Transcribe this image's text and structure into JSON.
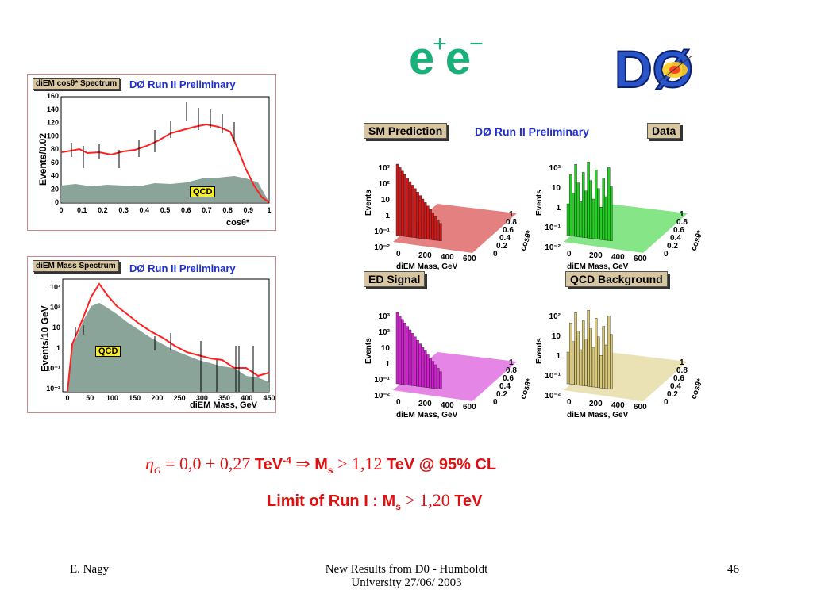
{
  "slide": {
    "title_base": "e",
    "title_plus": "+",
    "title_base2": "e",
    "title_minus": "−"
  },
  "logo": {
    "text": "DØ"
  },
  "plot_cos": {
    "tag": "diEM cosθ* Spectrum",
    "prelim": "DØ Run II Preliminary",
    "ylabel": "Events/0.02",
    "xlabel": "cosθ*",
    "yticks": [
      "0",
      "20",
      "40",
      "60",
      "80",
      "100",
      "120",
      "140",
      "160"
    ],
    "xticks": [
      "0",
      "0.1",
      "0.2",
      "0.3",
      "0.4",
      "0.5",
      "0.6",
      "0.7",
      "0.8",
      "0.9",
      "1"
    ],
    "qcd": "QCD"
  },
  "plot_mass": {
    "tag": "diEM Mass Spectrum",
    "prelim": "DØ Run II Preliminary",
    "ylabel": "Events/10 GeV",
    "xlabel": "diEM Mass, GeV",
    "yticks": [
      "10⁻²",
      "10⁻¹",
      "1",
      "10",
      "10²",
      "10³"
    ],
    "xticks": [
      "0",
      "50",
      "100",
      "150",
      "200",
      "250",
      "300",
      "350",
      "400",
      "450"
    ],
    "qcd": "QCD"
  },
  "lego": {
    "prelim": "DØ Run II Preliminary",
    "panels": [
      {
        "tag": "SM Prediction",
        "color": "#d01818",
        "ylabel": "Events",
        "zt": [
          "10³",
          "10²",
          "10",
          "1",
          "10⁻¹",
          "10⁻²"
        ],
        "xlabel": "diEM Mass, GeV",
        "xt": [
          "0",
          "200",
          "400",
          "600"
        ],
        "ct": [
          "1",
          "0.8",
          "0.6",
          "0.4",
          "0.2",
          "0"
        ],
        "clabel": "cosθ*"
      },
      {
        "tag": "Data",
        "color": "#22d022",
        "ylabel": "Events",
        "zt": [
          "10²",
          "10",
          "1",
          "10⁻¹",
          "10⁻²"
        ],
        "xlabel": "diEM Mass, GeV",
        "xt": [
          "0",
          "200",
          "400",
          "600"
        ],
        "ct": [
          "1",
          "0.8",
          "0.6",
          "0.4",
          "0.2",
          "0"
        ],
        "clabel": "cosθ*"
      },
      {
        "tag": "ED Signal",
        "color": "#d020d0",
        "ylabel": "Events",
        "zt": [
          "10³",
          "10²",
          "10",
          "1",
          "10⁻¹",
          "10⁻²"
        ],
        "xlabel": "diEM Mass, GeV",
        "xt": [
          "0",
          "200",
          "400",
          "600"
        ],
        "ct": [
          "1",
          "0.8",
          "0.6",
          "0.4",
          "0.2",
          "0"
        ],
        "clabel": "cosθ*"
      },
      {
        "tag": "QCD Background",
        "color": "#d8c878",
        "ylabel": "Events",
        "zt": [
          "10²",
          "10",
          "1",
          "10⁻¹",
          "10⁻²"
        ],
        "xlabel": "diEM Mass, GeV",
        "xt": [
          "0",
          "200",
          "400",
          "600"
        ],
        "ct": [
          "1",
          "0.8",
          "0.6",
          "0.4",
          "0.2",
          "0"
        ],
        "clabel": "cosθ*"
      }
    ]
  },
  "result": {
    "line1_eta": "η",
    "line1_sub": "G",
    "line1_eq": " = 0,0 + 0,27 ",
    "line1_unit": "TeV",
    "line1_exp": "-4",
    "line1_arrow": " ⇒ ",
    "line1_m": "M",
    "line1_msub": "s",
    "line1_gt": " > 1,12 ",
    "line1_tail": "TeV @ 95% CL",
    "line2_text": "Limit of  Run I : M",
    "line2_msub": "s",
    "line2_gt": " > 1,20 ",
    "line2_tail": "TeV"
  },
  "footer": {
    "left": "E. Nagy",
    "center1": "New Results from D0 - Humboldt",
    "center2": "University  27/06/ 2003",
    "right": "46"
  },
  "colors": {
    "accent": "#19b07a",
    "result": "#e01010",
    "hist_fill": "#8aa49a",
    "hist_line": "#ff2020"
  }
}
